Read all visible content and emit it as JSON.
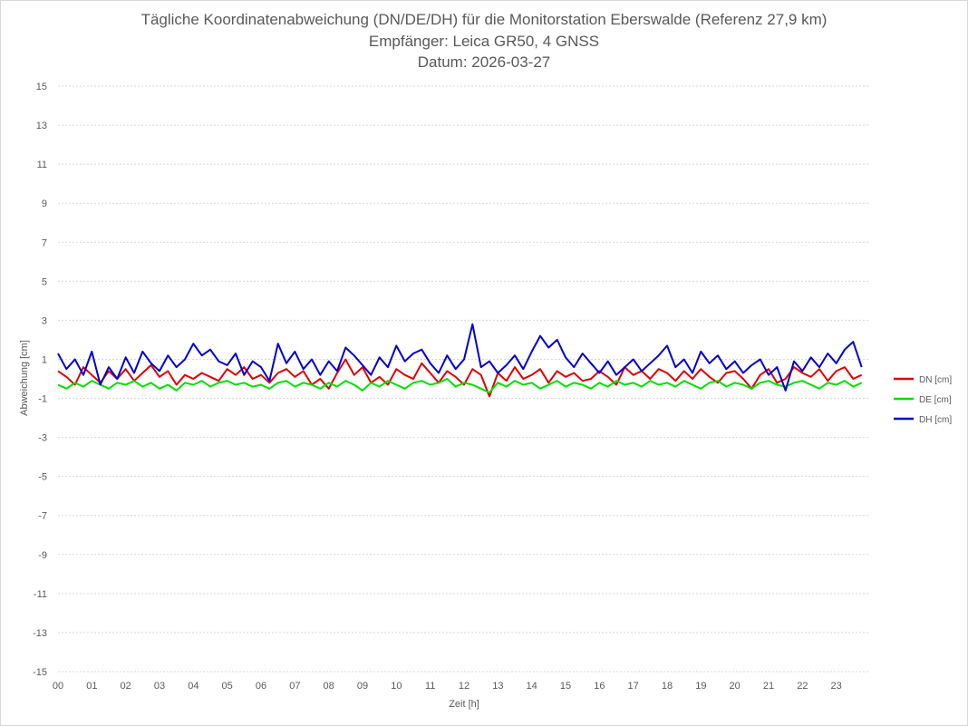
{
  "chart_data": {
    "type": "line",
    "title": "Tägliche Koordinatenabweichung (DN/DE/DH) für die Monitorstation Eberswalde (Referenz 27,9 km)",
    "subtitle_1": "Empfänger: Leica GR50, 4 GNSS",
    "subtitle_2": "Datum: 2026-03-27",
    "xlabel": "Zeit [h]",
    "ylabel": "Abweichung [cm]",
    "xlim": [
      0,
      24
    ],
    "ylim": [
      -15,
      15
    ],
    "y_ticks": [
      "15",
      "13",
      "11",
      "9",
      "7",
      "5",
      "3",
      "1",
      "-1",
      "-3",
      "-5",
      "-7",
      "-9",
      "-11",
      "-13",
      "-15"
    ],
    "x_ticks": [
      "00",
      "01",
      "02",
      "03",
      "04",
      "05",
      "06",
      "07",
      "08",
      "09",
      "10",
      "11",
      "12",
      "13",
      "14",
      "15",
      "16",
      "17",
      "18",
      "19",
      "20",
      "21",
      "22",
      "23"
    ],
    "grid": true,
    "legend_position": "right",
    "series": [
      {
        "name": "DN [cm]",
        "color": "#e00000",
        "x": [
          0,
          0.25,
          0.5,
          0.75,
          1,
          1.25,
          1.5,
          1.75,
          2,
          2.25,
          2.5,
          2.75,
          3,
          3.25,
          3.5,
          3.75,
          4,
          4.25,
          4.5,
          4.75,
          5,
          5.25,
          5.5,
          5.75,
          6,
          6.25,
          6.5,
          6.75,
          7,
          7.25,
          7.5,
          7.75,
          8,
          8.25,
          8.5,
          8.75,
          9,
          9.25,
          9.5,
          9.75,
          10,
          10.25,
          10.5,
          10.75,
          11,
          11.25,
          11.5,
          11.75,
          12,
          12.25,
          12.5,
          12.75,
          13,
          13.25,
          13.5,
          13.75,
          14,
          14.25,
          14.5,
          14.75,
          15,
          15.25,
          15.5,
          15.75,
          16,
          16.25,
          16.5,
          16.75,
          17,
          17.25,
          17.5,
          17.75,
          18,
          18.25,
          18.5,
          18.75,
          19,
          19.25,
          19.5,
          19.75,
          20,
          20.25,
          20.5,
          20.75,
          21,
          21.25,
          21.5,
          21.75,
          22,
          22.25,
          22.5,
          22.75,
          23,
          23.25,
          23.5,
          23.75
        ],
        "values": [
          0.4,
          0.1,
          -0.3,
          0.6,
          0.2,
          -0.2,
          0.4,
          0.0,
          0.5,
          -0.1,
          0.3,
          0.7,
          0.1,
          0.4,
          -0.3,
          0.2,
          0.0,
          0.3,
          0.1,
          -0.1,
          0.5,
          0.2,
          0.6,
          0.0,
          0.2,
          -0.2,
          0.3,
          0.5,
          0.1,
          0.4,
          -0.3,
          0.0,
          -0.5,
          0.3,
          1.0,
          0.2,
          0.6,
          -0.2,
          0.1,
          -0.3,
          0.5,
          0.2,
          0.0,
          0.8,
          0.3,
          -0.2,
          0.4,
          0.1,
          -0.3,
          0.5,
          0.2,
          -0.9,
          0.3,
          -0.1,
          0.6,
          0.0,
          0.2,
          0.5,
          -0.2,
          0.4,
          0.1,
          0.3,
          -0.1,
          0.0,
          0.4,
          0.1,
          -0.3,
          0.6,
          0.2,
          0.4,
          0.0,
          0.5,
          0.3,
          -0.1,
          0.4,
          0.0,
          0.5,
          0.1,
          -0.2,
          0.3,
          0.4,
          0.0,
          -0.5,
          0.2,
          0.5,
          -0.2,
          0.0,
          0.6,
          0.3,
          0.1,
          0.5,
          -0.1,
          0.4,
          0.6,
          0.0,
          0.2
        ]
      },
      {
        "name": "DE [cm]",
        "color": "#00e000",
        "x": [
          0,
          0.25,
          0.5,
          0.75,
          1,
          1.25,
          1.5,
          1.75,
          2,
          2.25,
          2.5,
          2.75,
          3,
          3.25,
          3.5,
          3.75,
          4,
          4.25,
          4.5,
          4.75,
          5,
          5.25,
          5.5,
          5.75,
          6,
          6.25,
          6.5,
          6.75,
          7,
          7.25,
          7.5,
          7.75,
          8,
          8.25,
          8.5,
          8.75,
          9,
          9.25,
          9.5,
          9.75,
          10,
          10.25,
          10.5,
          10.75,
          11,
          11.25,
          11.5,
          11.75,
          12,
          12.25,
          12.5,
          12.75,
          13,
          13.25,
          13.5,
          13.75,
          14,
          14.25,
          14.5,
          14.75,
          15,
          15.25,
          15.5,
          15.75,
          16,
          16.25,
          16.5,
          16.75,
          17,
          17.25,
          17.5,
          17.75,
          18,
          18.25,
          18.5,
          18.75,
          19,
          19.25,
          19.5,
          19.75,
          20,
          20.25,
          20.5,
          20.75,
          21,
          21.25,
          21.5,
          21.75,
          22,
          22.25,
          22.5,
          22.75,
          23,
          23.25,
          23.5,
          23.75
        ],
        "values": [
          -0.3,
          -0.5,
          -0.2,
          -0.4,
          -0.1,
          -0.3,
          -0.5,
          -0.2,
          -0.3,
          -0.1,
          -0.4,
          -0.2,
          -0.5,
          -0.3,
          -0.6,
          -0.2,
          -0.3,
          -0.1,
          -0.4,
          -0.2,
          -0.1,
          -0.3,
          -0.2,
          -0.4,
          -0.3,
          -0.5,
          -0.2,
          -0.1,
          -0.4,
          -0.2,
          -0.3,
          -0.5,
          -0.2,
          -0.4,
          -0.1,
          -0.3,
          -0.6,
          -0.2,
          -0.4,
          -0.1,
          -0.3,
          -0.5,
          -0.2,
          -0.1,
          -0.3,
          -0.2,
          0.0,
          -0.4,
          -0.2,
          -0.3,
          -0.5,
          -0.7,
          -0.2,
          -0.4,
          -0.1,
          -0.3,
          -0.2,
          -0.5,
          -0.3,
          -0.1,
          -0.4,
          -0.2,
          -0.3,
          -0.5,
          -0.2,
          -0.4,
          -0.1,
          -0.3,
          -0.2,
          -0.4,
          -0.1,
          -0.3,
          -0.2,
          -0.4,
          -0.1,
          -0.3,
          -0.5,
          -0.2,
          -0.1,
          -0.4,
          -0.2,
          -0.3,
          -0.5,
          -0.2,
          -0.1,
          -0.3,
          -0.4,
          -0.2,
          -0.1,
          -0.3,
          -0.5,
          -0.2,
          -0.3,
          -0.1,
          -0.4,
          -0.2
        ]
      },
      {
        "name": "DH [cm]",
        "color": "#0000d0",
        "x": [
          0,
          0.25,
          0.5,
          0.75,
          1,
          1.25,
          1.5,
          1.75,
          2,
          2.25,
          2.5,
          2.75,
          3,
          3.25,
          3.5,
          3.75,
          4,
          4.25,
          4.5,
          4.75,
          5,
          5.25,
          5.5,
          5.75,
          6,
          6.25,
          6.5,
          6.75,
          7,
          7.25,
          7.5,
          7.75,
          8,
          8.25,
          8.5,
          8.75,
          9,
          9.25,
          9.5,
          9.75,
          10,
          10.25,
          10.5,
          10.75,
          11,
          11.25,
          11.5,
          11.75,
          12,
          12.25,
          12.5,
          12.75,
          13,
          13.25,
          13.5,
          13.75,
          14,
          14.25,
          14.5,
          14.75,
          15,
          15.25,
          15.5,
          15.75,
          16,
          16.25,
          16.5,
          16.75,
          17,
          17.25,
          17.5,
          17.75,
          18,
          18.25,
          18.5,
          18.75,
          19,
          19.25,
          19.5,
          19.75,
          20,
          20.25,
          20.5,
          20.75,
          21,
          21.25,
          21.5,
          21.75,
          22,
          22.25,
          22.5,
          22.75,
          23,
          23.25,
          23.5,
          23.75
        ],
        "values": [
          1.3,
          0.5,
          1.0,
          0.2,
          1.4,
          -0.3,
          0.6,
          0.0,
          1.1,
          0.3,
          1.4,
          0.8,
          0.4,
          1.2,
          0.6,
          1.0,
          1.8,
          1.2,
          1.5,
          0.9,
          0.7,
          1.3,
          0.2,
          0.9,
          0.6,
          -0.1,
          1.8,
          0.8,
          1.4,
          0.5,
          1.0,
          0.2,
          0.9,
          0.4,
          1.6,
          1.2,
          0.7,
          0.2,
          1.1,
          0.6,
          1.7,
          0.9,
          1.3,
          1.5,
          0.8,
          0.3,
          1.2,
          0.5,
          1.0,
          2.8,
          0.6,
          0.9,
          0.3,
          0.7,
          1.2,
          0.5,
          1.4,
          2.2,
          1.6,
          2.0,
          1.1,
          0.6,
          1.3,
          0.8,
          0.3,
          0.9,
          0.2,
          0.6,
          1.0,
          0.4,
          0.8,
          1.2,
          1.7,
          0.6,
          1.0,
          0.3,
          1.4,
          0.8,
          1.2,
          0.5,
          0.9,
          0.3,
          0.7,
          1.0,
          0.2,
          0.6,
          -0.6,
          0.9,
          0.4,
          1.1,
          0.6,
          1.3,
          0.8,
          1.5,
          1.9,
          0.6
        ]
      }
    ]
  }
}
